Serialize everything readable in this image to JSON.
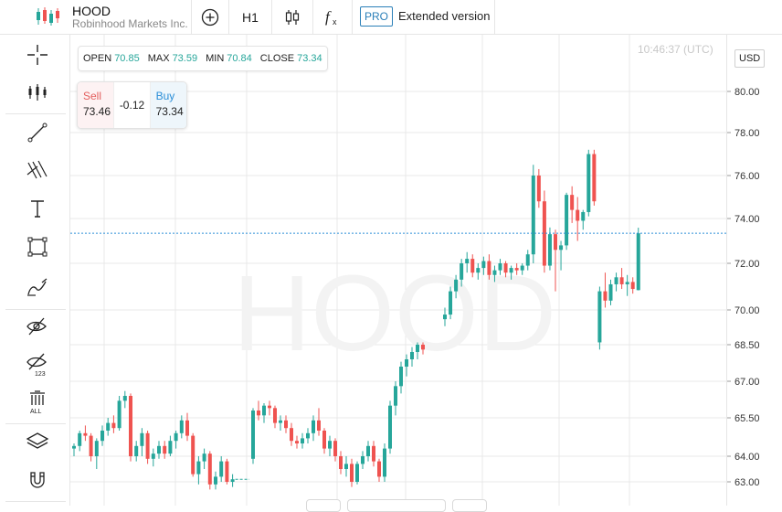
{
  "header": {
    "symbol": "HOOD",
    "company": "Robinhood Markets Inc.",
    "timeframe": "H1",
    "pro_badge": "PRO",
    "extended_label": "Extended version",
    "icons": [
      "chart-logo-icon",
      "add-indicator-icon",
      "candlestick-type-icon",
      "function-icon"
    ]
  },
  "sidebar": {
    "tools": [
      "crosshair-icon",
      "indicators-icon",
      "trend-line-icon",
      "pitchfork-icon",
      "text-icon",
      "rectangle-icon",
      "brush-icon",
      "hide-drawings-icon",
      "hide-indicators-icon",
      "delete-all-icon",
      "layers-icon",
      "magnet-icon"
    ],
    "delete_all_label": "ALL",
    "hide_count_label": "123"
  },
  "ohlc": {
    "open_label": "OPEN",
    "open": "70.85",
    "max_label": "MAX",
    "max": "73.59",
    "min_label": "MIN",
    "min": "70.84",
    "close_label": "CLOSE",
    "close": "73.34"
  },
  "trade": {
    "sell_label": "Sell",
    "sell_price": "73.46",
    "spread": "-0.12",
    "buy_label": "Buy",
    "buy_price": "73.34"
  },
  "time_display": "10:46:37 (UTC)",
  "currency_button": "USD",
  "watermark": "HOOD",
  "colors": {
    "up": "#26a69a",
    "down": "#ef5350",
    "accent": "#2a7fb8",
    "grid": "#e9e9e9",
    "price_line": "#2a8ed8"
  },
  "chart_data": {
    "type": "candlestick",
    "price_axis_labels": [
      "80.00",
      "78.00",
      "76.00",
      "74.00",
      "72.00",
      "70.00",
      "68.50",
      "67.00",
      "65.50",
      "64.00",
      "63.00"
    ],
    "current_price": 73.34,
    "candles": [
      [
        64.3,
        64.5,
        64.0,
        64.4
      ],
      [
        64.4,
        65.0,
        64.2,
        64.9
      ],
      [
        64.9,
        65.2,
        64.6,
        64.8
      ],
      [
        64.8,
        64.9,
        63.8,
        64.0
      ],
      [
        64.0,
        64.7,
        63.5,
        64.6
      ],
      [
        64.6,
        65.2,
        64.4,
        65.0
      ],
      [
        65.0,
        65.5,
        64.8,
        65.3
      ],
      [
        65.3,
        65.6,
        64.9,
        65.1
      ],
      [
        65.1,
        66.4,
        65.0,
        66.2
      ],
      [
        66.2,
        66.6,
        65.9,
        66.4
      ],
      [
        66.4,
        66.5,
        63.8,
        64.0
      ],
      [
        64.0,
        64.6,
        63.8,
        64.4
      ],
      [
        64.4,
        65.1,
        64.0,
        64.9
      ],
      [
        64.9,
        65.0,
        63.7,
        63.9
      ],
      [
        63.9,
        64.3,
        63.6,
        64.1
      ],
      [
        64.1,
        64.6,
        63.9,
        64.4
      ],
      [
        64.4,
        64.6,
        63.9,
        64.1
      ],
      [
        64.1,
        64.8,
        64.0,
        64.6
      ],
      [
        64.6,
        65.0,
        64.3,
        64.9
      ],
      [
        64.9,
        65.6,
        64.7,
        65.4
      ],
      [
        65.4,
        65.7,
        64.6,
        64.8
      ],
      [
        64.8,
        64.9,
        63.2,
        63.3
      ],
      [
        63.3,
        64.0,
        62.9,
        63.8
      ],
      [
        63.8,
        64.3,
        63.5,
        64.1
      ],
      [
        64.1,
        64.2,
        62.7,
        62.9
      ],
      [
        62.9,
        63.4,
        62.7,
        63.2
      ],
      [
        63.2,
        64.0,
        63.0,
        63.8
      ],
      [
        63.8,
        63.9,
        62.9,
        63.0
      ],
      [
        63.0,
        63.3,
        62.8,
        63.1
      ],
      [
        63.9,
        65.9,
        63.7,
        65.8
      ],
      [
        65.8,
        66.2,
        65.4,
        65.6
      ],
      [
        65.6,
        66.1,
        65.3,
        66.0
      ],
      [
        66.0,
        66.2,
        65.6,
        65.9
      ],
      [
        65.9,
        66.0,
        65.1,
        65.3
      ],
      [
        65.3,
        65.6,
        65.0,
        65.4
      ],
      [
        65.4,
        65.6,
        64.9,
        65.1
      ],
      [
        65.1,
        65.3,
        64.4,
        64.6
      ],
      [
        64.6,
        64.8,
        64.3,
        64.5
      ],
      [
        64.5,
        64.9,
        64.3,
        64.7
      ],
      [
        64.7,
        65.1,
        64.5,
        64.9
      ],
      [
        64.9,
        65.6,
        64.6,
        65.4
      ],
      [
        65.4,
        65.9,
        64.8,
        65.0
      ],
      [
        65.0,
        65.1,
        64.1,
        64.3
      ],
      [
        64.3,
        64.8,
        64.0,
        64.6
      ],
      [
        64.6,
        64.7,
        63.8,
        64.0
      ],
      [
        64.0,
        64.2,
        63.3,
        63.5
      ],
      [
        63.5,
        64.0,
        63.2,
        63.7
      ],
      [
        63.7,
        63.9,
        62.8,
        63.0
      ],
      [
        63.0,
        63.8,
        62.9,
        63.7
      ],
      [
        63.7,
        64.2,
        63.5,
        64.0
      ],
      [
        64.0,
        64.6,
        63.8,
        64.4
      ],
      [
        64.4,
        64.6,
        63.6,
        63.8
      ],
      [
        63.8,
        63.9,
        63.0,
        63.2
      ],
      [
        63.2,
        64.5,
        63.0,
        64.3
      ],
      [
        64.3,
        66.2,
        64.1,
        66.0
      ],
      [
        66.0,
        67.0,
        65.6,
        66.8
      ],
      [
        66.8,
        67.8,
        66.5,
        67.6
      ],
      [
        67.6,
        68.1,
        67.2,
        67.9
      ],
      [
        67.9,
        68.4,
        67.6,
        68.2
      ],
      [
        68.2,
        68.6,
        67.9,
        68.5
      ],
      [
        68.5,
        68.6,
        68.1,
        68.3
      ],
      [
        69.6,
        70.1,
        69.3,
        69.8
      ],
      [
        69.8,
        71.0,
        69.6,
        70.8
      ],
      [
        70.8,
        71.5,
        70.5,
        71.3
      ],
      [
        71.3,
        72.2,
        71.0,
        72.0
      ],
      [
        72.0,
        72.5,
        71.6,
        72.2
      ],
      [
        72.2,
        72.4,
        71.4,
        71.6
      ],
      [
        71.6,
        72.0,
        71.3,
        71.8
      ],
      [
        71.8,
        72.3,
        71.5,
        72.1
      ],
      [
        72.1,
        72.4,
        71.3,
        71.5
      ],
      [
        71.5,
        71.9,
        71.2,
        71.7
      ],
      [
        71.7,
        72.2,
        71.5,
        72.0
      ],
      [
        72.0,
        72.1,
        71.4,
        71.6
      ],
      [
        71.6,
        71.9,
        71.3,
        71.8
      ],
      [
        71.8,
        72.0,
        71.5,
        71.7
      ],
      [
        71.7,
        72.0,
        71.5,
        71.9
      ],
      [
        71.9,
        72.6,
        71.7,
        72.4
      ],
      [
        72.4,
        76.5,
        72.0,
        76.0
      ],
      [
        76.0,
        76.3,
        74.5,
        74.8
      ],
      [
        74.8,
        75.3,
        71.6,
        71.9
      ],
      [
        71.9,
        73.6,
        71.7,
        73.3
      ],
      [
        73.3,
        73.5,
        70.8,
        72.6
      ],
      [
        72.6,
        73.0,
        71.7,
        72.8
      ],
      [
        72.8,
        75.2,
        72.6,
        75.1
      ],
      [
        75.1,
        75.5,
        73.8,
        74.4
      ],
      [
        74.4,
        75.0,
        73.0,
        73.9
      ],
      [
        73.9,
        74.4,
        73.5,
        74.3
      ],
      [
        74.3,
        77.2,
        74.1,
        77.0
      ],
      [
        77.0,
        77.2,
        74.6,
        74.8
      ],
      [
        68.6,
        71.0,
        68.3,
        70.8
      ],
      [
        70.8,
        71.6,
        70.1,
        70.4
      ],
      [
        70.4,
        71.3,
        70.2,
        71.1
      ],
      [
        71.1,
        71.6,
        70.8,
        71.4
      ],
      [
        71.4,
        71.8,
        70.9,
        71.1
      ],
      [
        71.1,
        71.5,
        70.6,
        71.2
      ],
      [
        71.2,
        71.4,
        70.7,
        70.9
      ],
      [
        70.85,
        73.59,
        70.84,
        73.34
      ]
    ]
  }
}
